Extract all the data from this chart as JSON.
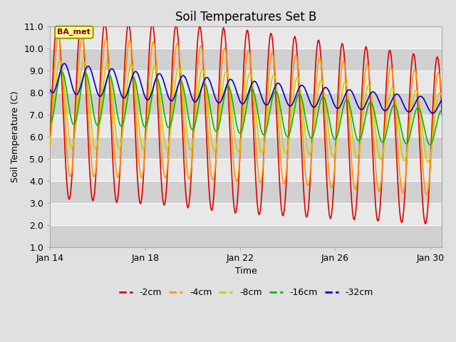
{
  "title": "Soil Temperatures Set B",
  "xlabel": "Time",
  "ylabel": "Soil Temperature (C)",
  "ylim": [
    1.0,
    11.0
  ],
  "yticks": [
    1.0,
    2.0,
    3.0,
    4.0,
    5.0,
    6.0,
    7.0,
    8.0,
    9.0,
    10.0,
    11.0
  ],
  "xtick_labels": [
    "Jan 14",
    "Jan 18",
    "Jan 22",
    "Jan 26",
    "Jan 30"
  ],
  "annotation_text": "BA_met",
  "series_colors": {
    "-2cm": "#dd0000",
    "-4cm": "#ff9900",
    "-8cm": "#cccc00",
    "-16cm": "#00bb00",
    "-32cm": "#0000cc"
  },
  "legend_labels": [
    "-2cm",
    "-4cm",
    "-8cm",
    "-16cm",
    "-32cm"
  ],
  "bg_color": "#e0e0e0",
  "plot_bg": "#ececec",
  "band_light": "#e8e8e8",
  "band_dark": "#d0d0d0",
  "title_fontsize": 12,
  "axis_fontsize": 9,
  "tick_fontsize": 9,
  "linewidth": 1.2
}
